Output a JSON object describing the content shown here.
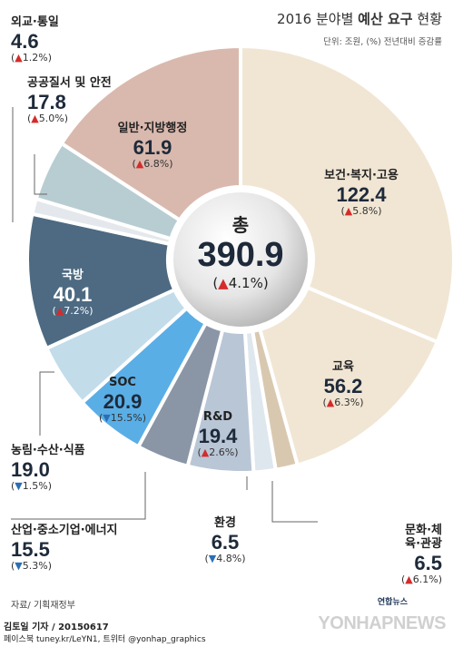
{
  "header": {
    "title_prefix": "2016 분야별",
    "title_bold": "예산 요구",
    "title_suffix": "현황",
    "unit": "단위: 조원, (%) 전년대비 증감률"
  },
  "footer": {
    "source": "자료/ 기획재정부",
    "reporter": "김토일 기자 / 20150617",
    "social": "페이스북 tuney.kr/LeYN1, 트위터 @yonhap_graphics",
    "brand_small": "연합뉴스",
    "watermark": "YONHAPNEWS"
  },
  "center": {
    "label": "총",
    "value": "390.9",
    "change_open": "(",
    "change_arrow": "▲",
    "change": "4.1%",
    "change_close": ")"
  },
  "chart_data": {
    "type": "pie",
    "style": "donut",
    "total": 390.9,
    "total_change_pct": 4.1,
    "unit": "조원",
    "slices": [
      {
        "name": "보건·복지·고용",
        "value": 122.4,
        "value_label": "122.4",
        "change": "5.8%",
        "arrow": "▲",
        "color": "#f1e6d4"
      },
      {
        "name": "교육",
        "value": 56.2,
        "value_label": "56.2",
        "change": "6.3%",
        "arrow": "▲",
        "color": "#f1e6d4"
      },
      {
        "name": "문화·체육·관광",
        "value": 6.5,
        "value_label": "6.5",
        "change": "6.1%",
        "arrow": "▲",
        "color": "#d9c8b0"
      },
      {
        "name": "환경",
        "value": 6.5,
        "value_label": "6.5",
        "change": "4.8%",
        "arrow": "▼",
        "color": "#dfe7ee"
      },
      {
        "name": "R&D",
        "value": 19.4,
        "value_label": "19.4",
        "change": "2.6%",
        "arrow": "▲",
        "color": "#b9c6d6"
      },
      {
        "name": "산업·중소기업·에너지",
        "value": 15.5,
        "value_label": "15.5",
        "change": "5.3%",
        "arrow": "▼",
        "color": "#8a96a6"
      },
      {
        "name": "SOC",
        "value": 20.9,
        "value_label": "20.9",
        "change": "15.5%",
        "arrow": "▼",
        "color": "#5aaee6"
      },
      {
        "name": "농림·수산·식품",
        "value": 19.0,
        "value_label": "19.0",
        "change": "1.5%",
        "arrow": "▼",
        "color": "#c2dcea"
      },
      {
        "name": "국방",
        "value": 40.1,
        "value_label": "40.1",
        "change": "7.2%",
        "arrow": "▲",
        "color": "#4d6a82"
      },
      {
        "name": "외교·통일",
        "value": 4.6,
        "value_label": "4.6",
        "change": "1.2%",
        "arrow": "▲",
        "color": "#e4e8ec"
      },
      {
        "name": "공공질서 및 안전",
        "value": 17.8,
        "value_label": "17.8",
        "change": "5.0%",
        "arrow": "▲",
        "color": "#b8cdd2"
      },
      {
        "name": "일반·지방행정",
        "value": 61.9,
        "value_label": "61.9",
        "change": "6.8%",
        "arrow": "▲",
        "color": "#d9b9ae"
      }
    ]
  }
}
